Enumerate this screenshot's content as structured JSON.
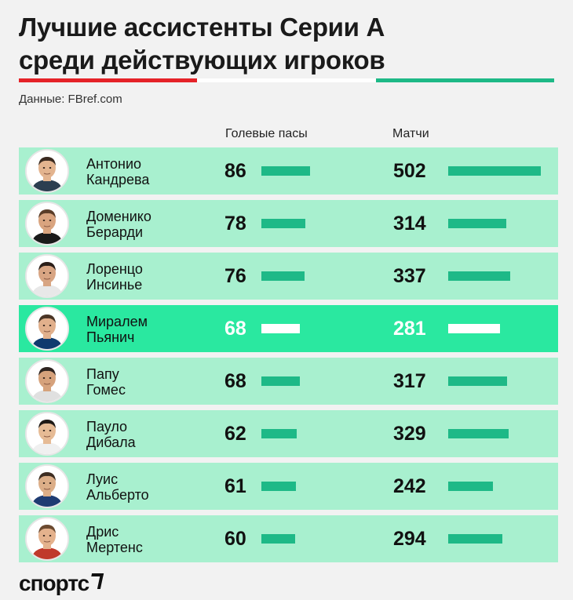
{
  "header": {
    "title_line1": "Лучшие ассистенты Серии А",
    "title_line2": "среди действующих игроков",
    "source": "Данные: FBref.com"
  },
  "colors": {
    "flag_red": "#e52228",
    "flag_white": "#ffffff",
    "flag_green": "#1eb987",
    "row_bg": "#a8f0cf",
    "row_highlight_bg": "#2ae8a0",
    "bar": "#1eb987"
  },
  "chart_data": {
    "type": "bar",
    "columns": [
      "Голевые пасы",
      "Матчи"
    ],
    "categories": [
      "Антонио Кандрева",
      "Доменико Берарди",
      "Лоренцо Инсинье",
      "Миралем Пьянич",
      "Папу Гомес",
      "Пауло Дибала",
      "Луис Альберто",
      "Дрис Мертенс"
    ],
    "series": [
      {
        "name": "Голевые пасы",
        "values": [
          86,
          78,
          76,
          68,
          68,
          62,
          61,
          60
        ]
      },
      {
        "name": "Матчи",
        "values": [
          502,
          314,
          337,
          281,
          317,
          329,
          242,
          294
        ]
      }
    ],
    "highlighted": "Миралем Пьянич"
  },
  "players": [
    {
      "first": "Антонио",
      "last": "Кандрева",
      "assists": "86",
      "matches": "502"
    },
    {
      "first": "Доменико",
      "last": "Берарди",
      "assists": "78",
      "matches": "314"
    },
    {
      "first": "Лоренцо",
      "last": "Инсинье",
      "assists": "76",
      "matches": "337"
    },
    {
      "first": "Миралем",
      "last": "Пьянич",
      "assists": "68",
      "matches": "281"
    },
    {
      "first": "Папу",
      "last": "Гомес",
      "assists": "68",
      "matches": "317"
    },
    {
      "first": "Пауло",
      "last": "Дибала",
      "assists": "62",
      "matches": "329"
    },
    {
      "first": "Луис",
      "last": "Альберто",
      "assists": "61",
      "matches": "242"
    },
    {
      "first": "Дрис",
      "last": "Мертенс",
      "assists": "60",
      "matches": "294"
    }
  ],
  "logo": {
    "text": "спортс"
  }
}
